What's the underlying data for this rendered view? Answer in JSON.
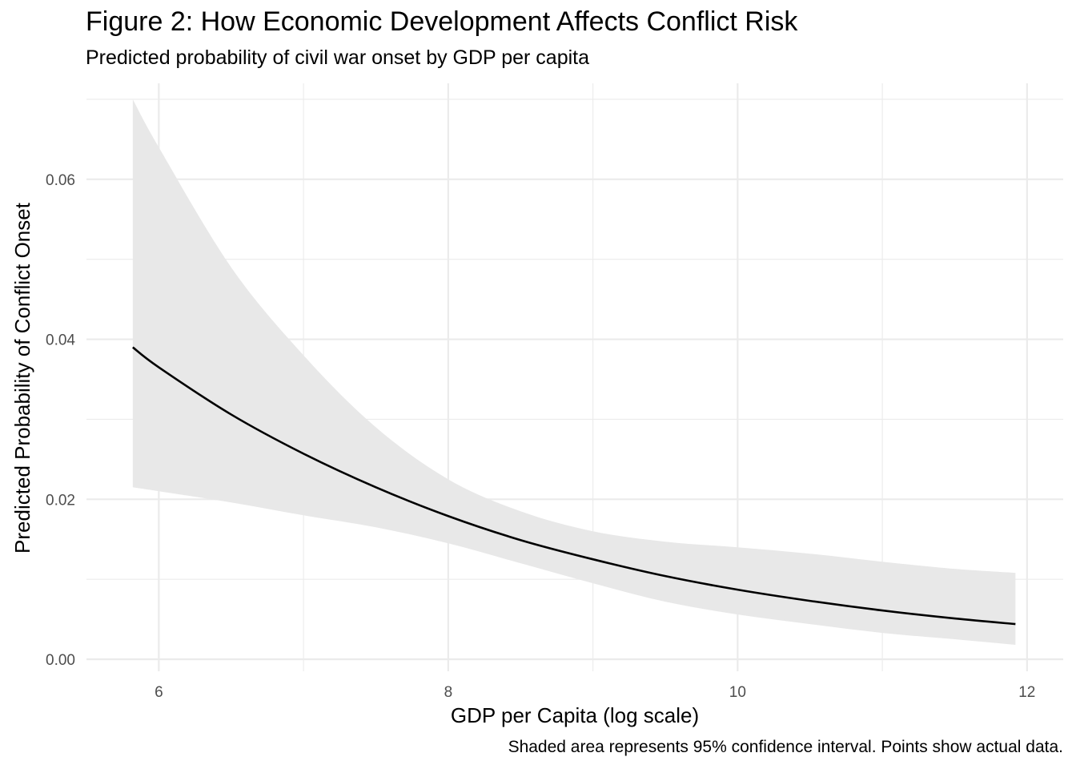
{
  "chart_data": {
    "type": "line",
    "title": "Figure 2: How Economic Development Affects Conflict Risk",
    "subtitle": "Predicted probability of civil war onset by GDP per capita",
    "caption": "Shaded area represents 95% confidence interval. Points show actual data.",
    "xlabel": "GDP per Capita (log scale)",
    "ylabel": "Predicted Probability of Conflict Onset",
    "xlim": [
      5.5,
      12.25
    ],
    "ylim": [
      -0.0015,
      0.072
    ],
    "x_ticks": [
      6,
      8,
      10,
      12
    ],
    "x_tick_labels": [
      "6",
      "8",
      "10",
      "12"
    ],
    "y_ticks": [
      0.0,
      0.02,
      0.04,
      0.06
    ],
    "y_tick_labels": [
      "0.00",
      "0.02",
      "0.04",
      "0.06"
    ],
    "grid": true,
    "legend": "none",
    "colors": {
      "line": "#000000",
      "ribbon": "#e8e8e8",
      "grid": "#ebebeb",
      "text": "#4d4d4d"
    },
    "series": [
      {
        "x": [
          5.82,
          6.0,
          6.5,
          7.0,
          7.5,
          8.0,
          8.5,
          9.0,
          9.5,
          10.0,
          10.5,
          11.0,
          11.5,
          11.92
        ],
        "values": [
          0.039,
          0.0365,
          0.0306,
          0.0257,
          0.0215,
          0.0179,
          0.0149,
          0.0125,
          0.0104,
          0.0087,
          0.0073,
          0.0061,
          0.0051,
          0.0044
        ],
        "lower": [
          0.0215,
          0.021,
          0.0196,
          0.018,
          0.0165,
          0.0145,
          0.012,
          0.0095,
          0.0072,
          0.0056,
          0.0044,
          0.0033,
          0.0025,
          0.0018
        ],
        "upper": [
          0.07,
          0.064,
          0.049,
          0.038,
          0.029,
          0.0225,
          0.0185,
          0.016,
          0.0147,
          0.014,
          0.0132,
          0.0122,
          0.0113,
          0.0108
        ]
      }
    ]
  }
}
